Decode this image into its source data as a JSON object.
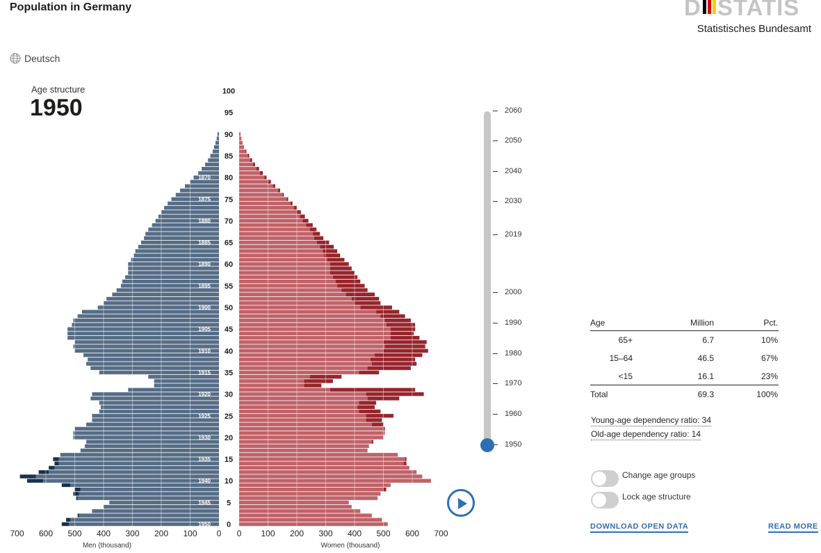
{
  "page": {
    "title": "Population in Germany",
    "language_label": "Deutsch"
  },
  "logo": {
    "word_left": "D",
    "word_right": "STATIS",
    "subtitle": "Statistisches Bundesamt",
    "flag_colors": [
      "#000000",
      "#dd0000",
      "#ffce00"
    ]
  },
  "header": {
    "age_structure_label": "Age structure",
    "year": "1950"
  },
  "colors": {
    "men": "#566d86",
    "men_surplus": "#17314f",
    "women": "#c16268",
    "women_surplus": "#98252c",
    "accent": "#2e6fb3",
    "axis": "#1d1d1b"
  },
  "chart_data": {
    "type": "bar",
    "orientation": "horizontal-pyramid",
    "ages": [
      0,
      1,
      2,
      3,
      4,
      5,
      6,
      7,
      8,
      9,
      10,
      11,
      12,
      13,
      14,
      15,
      16,
      17,
      18,
      19,
      20,
      21,
      22,
      23,
      24,
      25,
      26,
      27,
      28,
      29,
      30,
      31,
      32,
      33,
      34,
      35,
      36,
      37,
      38,
      39,
      40,
      41,
      42,
      43,
      44,
      45,
      46,
      47,
      48,
      49,
      50,
      51,
      52,
      53,
      54,
      55,
      56,
      57,
      58,
      59,
      60,
      61,
      62,
      63,
      64,
      65,
      66,
      67,
      68,
      69,
      70,
      71,
      72,
      73,
      74,
      75,
      76,
      77,
      78,
      79,
      80,
      81,
      82,
      83,
      84,
      85,
      86,
      87,
      88,
      89,
      90
    ],
    "series": [
      {
        "name": "Men (thousand)",
        "values": [
          545,
          530,
          490,
          440,
          400,
          380,
          495,
          505,
          500,
          545,
          665,
          690,
          625,
          590,
          570,
          575,
          550,
          480,
          465,
          460,
          505,
          505,
          500,
          460,
          440,
          440,
          415,
          410,
          415,
          445,
          440,
          315,
          225,
          225,
          245,
          415,
          445,
          460,
          455,
          470,
          500,
          505,
          500,
          525,
          525,
          525,
          510,
          505,
          490,
          475,
          420,
          400,
          390,
          370,
          355,
          340,
          335,
          325,
          315,
          315,
          315,
          305,
          295,
          290,
          280,
          270,
          260,
          255,
          245,
          232,
          220,
          210,
          200,
          190,
          178,
          165,
          150,
          135,
          118,
          100,
          88,
          72,
          60,
          48,
          38,
          30,
          22,
          17,
          12,
          8,
          5
        ],
        "surplus_over_women": [
          25,
          15,
          5,
          0,
          0,
          0,
          5,
          20,
          20,
          30,
          55,
          55,
          35,
          20,
          15,
          20,
          0,
          0,
          0,
          0,
          0,
          0,
          0,
          0,
          0,
          0,
          0,
          0,
          0,
          0,
          0,
          0,
          0,
          0,
          0,
          0,
          0,
          0,
          0,
          0,
          0,
          0,
          0,
          0,
          0,
          0,
          0,
          0,
          0,
          0,
          0,
          0,
          0,
          0,
          0,
          0,
          0,
          0,
          0,
          0,
          0,
          0,
          0,
          0,
          0,
          0,
          0,
          0,
          0,
          0,
          0,
          0,
          0,
          0,
          0,
          0,
          0,
          0,
          0,
          0,
          0,
          0,
          0,
          0,
          0,
          0,
          0,
          0,
          0,
          0,
          0
        ]
      },
      {
        "name": "Women (thousand)",
        "values": [
          515,
          495,
          460,
          420,
          390,
          380,
          480,
          490,
          510,
          525,
          665,
          635,
          615,
          590,
          580,
          580,
          550,
          445,
          450,
          465,
          500,
          505,
          505,
          500,
          495,
          535,
          490,
          470,
          475,
          555,
          640,
          610,
          285,
          325,
          355,
          485,
          595,
          615,
          610,
          635,
          655,
          645,
          650,
          625,
          605,
          610,
          610,
          595,
          575,
          555,
          530,
          490,
          485,
          470,
          445,
          435,
          420,
          410,
          400,
          390,
          380,
          365,
          350,
          340,
          328,
          312,
          292,
          280,
          268,
          255,
          240,
          228,
          214,
          200,
          185,
          170,
          155,
          142,
          125,
          110,
          95,
          82,
          69,
          55,
          45,
          35,
          25,
          17,
          12,
          8,
          5
        ],
        "surplus_over_men": [
          0,
          0,
          0,
          0,
          0,
          0,
          0,
          0,
          10,
          0,
          0,
          0,
          0,
          0,
          10,
          5,
          0,
          0,
          0,
          5,
          0,
          0,
          5,
          40,
          55,
          95,
          75,
          60,
          60,
          110,
          200,
          295,
          60,
          100,
          110,
          70,
          150,
          155,
          155,
          165,
          155,
          140,
          150,
          100,
          80,
          85,
          100,
          90,
          85,
          80,
          110,
          90,
          95,
          100,
          90,
          95,
          85,
          85,
          85,
          75,
          65,
          60,
          55,
          50,
          48,
          42,
          32,
          25,
          23,
          23,
          20,
          18,
          14,
          10,
          7,
          5,
          5,
          7,
          7,
          10,
          7,
          10,
          9,
          7,
          7,
          5,
          3,
          0,
          0,
          0,
          0
        ]
      }
    ],
    "x_max_thousand": 700,
    "x_ticks": [
      "700",
      "600",
      "500",
      "400",
      "300",
      "200",
      "100",
      "0"
    ],
    "x_ticks_right": [
      "0",
      "100",
      "200",
      "300",
      "400",
      "500",
      "600",
      "700"
    ],
    "xlabel_left": "Men (thousand)",
    "xlabel_right": "Women (thousand)",
    "age_ticks": [
      "0",
      "5",
      "10",
      "15",
      "20",
      "25",
      "30",
      "35",
      "40",
      "45",
      "50",
      "55",
      "60",
      "65",
      "70",
      "75",
      "80",
      "85",
      "90",
      "95",
      "100"
    ],
    "birth_year_ticks": [
      {
        "age": 0,
        "label": "1950"
      },
      {
        "age": 5,
        "label": "1945"
      },
      {
        "age": 10,
        "label": "1940"
      },
      {
        "age": 15,
        "label": "1935"
      },
      {
        "age": 20,
        "label": "1930"
      },
      {
        "age": 25,
        "label": "1925"
      },
      {
        "age": 30,
        "label": "1920"
      },
      {
        "age": 35,
        "label": "1915"
      },
      {
        "age": 40,
        "label": "1910"
      },
      {
        "age": 45,
        "label": "1905"
      },
      {
        "age": 50,
        "label": "1900"
      },
      {
        "age": 55,
        "label": "1895"
      },
      {
        "age": 60,
        "label": "1890"
      },
      {
        "age": 65,
        "label": "1885"
      },
      {
        "age": 70,
        "label": "1880"
      },
      {
        "age": 75,
        "label": "1875"
      },
      {
        "age": 80,
        "label": "1870"
      }
    ],
    "grid": true
  },
  "timeline": {
    "ticks": [
      "2060",
      "2050",
      "2040",
      "2030",
      "2019",
      "2000",
      "1990",
      "1980",
      "1970",
      "1960",
      "1950"
    ],
    "selected": "1950"
  },
  "stats": {
    "headers": {
      "age": "Age",
      "million": "Million",
      "pct": "Pct."
    },
    "rows": [
      {
        "age": "65+",
        "million": "6.7",
        "pct": "10%"
      },
      {
        "age": "15–64",
        "million": "46.5",
        "pct": "67%"
      },
      {
        "age": "<15",
        "million": "16.1",
        "pct": "23%"
      }
    ],
    "total": {
      "age": "Total",
      "million": "69.3",
      "pct": "100%"
    },
    "young_ratio": "Young-age dependency ratio: 34",
    "old_ratio": "Old-age dependency ratio: 14"
  },
  "controls": {
    "change_age_groups": "Change age groups",
    "lock_age_structure": "Lock age structure",
    "download": "DOWNLOAD OPEN DATA",
    "read_more": "READ MORE"
  }
}
